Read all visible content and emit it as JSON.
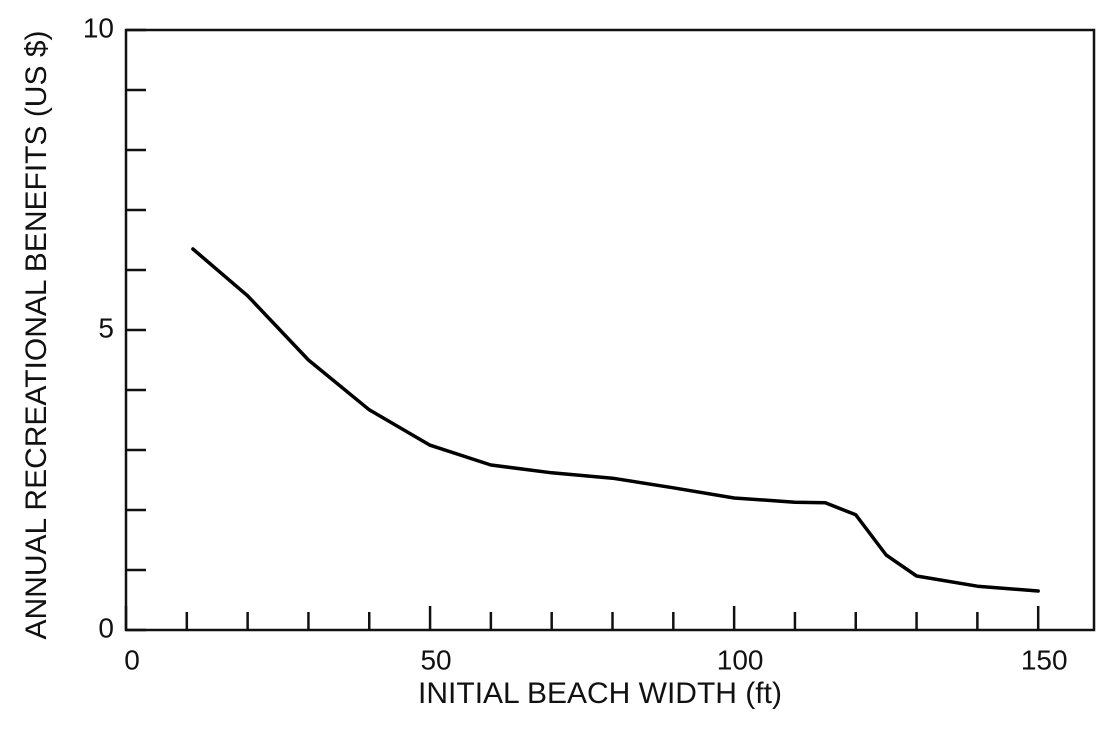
{
  "chart_data": {
    "type": "line",
    "xlabel": "INITIAL BEACH WIDTH (ft)",
    "ylabel": "ANNUAL RECREATIONAL BENEFITS (US $)",
    "x": [
      11,
      20,
      30,
      40,
      50,
      60,
      70,
      80,
      90,
      100,
      110,
      115,
      120,
      125,
      130,
      140,
      150
    ],
    "series": [
      {
        "color": "#000000",
        "values": [
          6.35,
          5.57,
          4.5,
          3.67,
          3.08,
          2.75,
          2.62,
          2.53,
          2.37,
          2.2,
          2.13,
          2.12,
          1.92,
          1.25,
          0.9,
          0.73,
          0.65
        ]
      }
    ],
    "xlim": [
      0,
      160
    ],
    "ylim": [
      0,
      10
    ],
    "xticks": [
      0,
      50,
      100,
      150
    ],
    "yticks": [
      0,
      5,
      10
    ],
    "x_minor_ticks": [
      10,
      20,
      30,
      40,
      60,
      70,
      80,
      90,
      110,
      120,
      130,
      140
    ],
    "y_minor_ticks": [
      1,
      2,
      3,
      4,
      6,
      7,
      8,
      9
    ]
  }
}
